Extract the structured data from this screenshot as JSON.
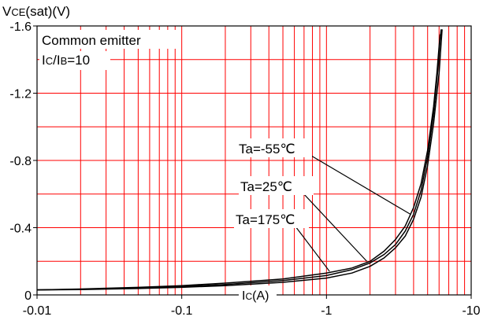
{
  "chart_data": {
    "type": "line",
    "y_axis_label": {
      "main": "V",
      "sub": "CE",
      "tail": "(sat)(V)"
    },
    "x_axis_label": {
      "main": "I",
      "sub": "C",
      "tail": "(A)"
    },
    "annotation": {
      "line1": "Common emitter",
      "line2": {
        "a_main": "I",
        "a_sub": "C",
        "slash": "/I",
        "b_sub": "B",
        "tail": "=10"
      }
    },
    "x_scale": "log",
    "xlim": [
      -0.01,
      -10
    ],
    "ylim": [
      0,
      -1.6
    ],
    "x_ticks": [
      {
        "value": -0.01,
        "label": "-0.01"
      },
      {
        "value": -0.1,
        "label": "-0.1"
      },
      {
        "value": -1,
        "label": "-1"
      },
      {
        "value": -10,
        "label": "-10"
      }
    ],
    "y_ticks": [
      {
        "value": 0,
        "label": "0"
      },
      {
        "value": -0.4,
        "label": "-0.4"
      },
      {
        "value": -0.8,
        "label": "-0.8"
      },
      {
        "value": -1.2,
        "label": "-1.2"
      },
      {
        "value": -1.6,
        "label": "-1.6"
      }
    ],
    "grid": true,
    "grid_color": "#ff0000",
    "axis_color": "#000000",
    "line_color": "#000000",
    "series": [
      {
        "name": "Ta=-55℃",
        "points": [
          [
            -0.01,
            -0.03
          ],
          [
            -0.02,
            -0.035
          ],
          [
            -0.05,
            -0.045
          ],
          [
            -0.1,
            -0.055
          ],
          [
            -0.2,
            -0.07
          ],
          [
            -0.5,
            -0.095
          ],
          [
            -1,
            -0.13
          ],
          [
            -1.5,
            -0.16
          ],
          [
            -2,
            -0.2
          ],
          [
            -2.5,
            -0.26
          ],
          [
            -3,
            -0.33
          ],
          [
            -3.5,
            -0.41
          ],
          [
            -4,
            -0.52
          ],
          [
            -4.5,
            -0.66
          ],
          [
            -5,
            -0.86
          ],
          [
            -5.5,
            -1.12
          ],
          [
            -5.8,
            -1.32
          ],
          [
            -6,
            -1.48
          ],
          [
            -6.1,
            -1.55
          ]
        ],
        "label_anchor": [
          -3.8,
          -0.48
        ]
      },
      {
        "name": "Ta=25℃",
        "points": [
          [
            -0.01,
            -0.03
          ],
          [
            -0.02,
            -0.033
          ],
          [
            -0.05,
            -0.04
          ],
          [
            -0.1,
            -0.05
          ],
          [
            -0.2,
            -0.062
          ],
          [
            -0.5,
            -0.085
          ],
          [
            -1,
            -0.115
          ],
          [
            -1.5,
            -0.15
          ],
          [
            -2,
            -0.19
          ],
          [
            -2.5,
            -0.24
          ],
          [
            -3,
            -0.3
          ],
          [
            -3.5,
            -0.38
          ],
          [
            -4,
            -0.48
          ],
          [
            -4.5,
            -0.62
          ],
          [
            -5,
            -0.82
          ],
          [
            -5.5,
            -1.08
          ],
          [
            -5.9,
            -1.35
          ],
          [
            -6.1,
            -1.52
          ],
          [
            -6.2,
            -1.58
          ]
        ],
        "label_anchor": [
          -1.9,
          -0.2
        ]
      },
      {
        "name": "Ta=175℃",
        "points": [
          [
            -0.01,
            -0.03
          ],
          [
            -0.02,
            -0.032
          ],
          [
            -0.05,
            -0.038
          ],
          [
            -0.1,
            -0.045
          ],
          [
            -0.2,
            -0.055
          ],
          [
            -0.5,
            -0.075
          ],
          [
            -1,
            -0.1
          ],
          [
            -1.5,
            -0.13
          ],
          [
            -2,
            -0.17
          ],
          [
            -2.5,
            -0.22
          ],
          [
            -3,
            -0.28
          ],
          [
            -3.5,
            -0.35
          ],
          [
            -4,
            -0.45
          ],
          [
            -4.5,
            -0.58
          ],
          [
            -5,
            -0.77
          ],
          [
            -5.5,
            -1.02
          ],
          [
            -6,
            -1.32
          ],
          [
            -6.2,
            -1.5
          ],
          [
            -6.3,
            -1.58
          ]
        ],
        "label_anchor": [
          -1.05,
          -0.14
        ]
      }
    ]
  }
}
